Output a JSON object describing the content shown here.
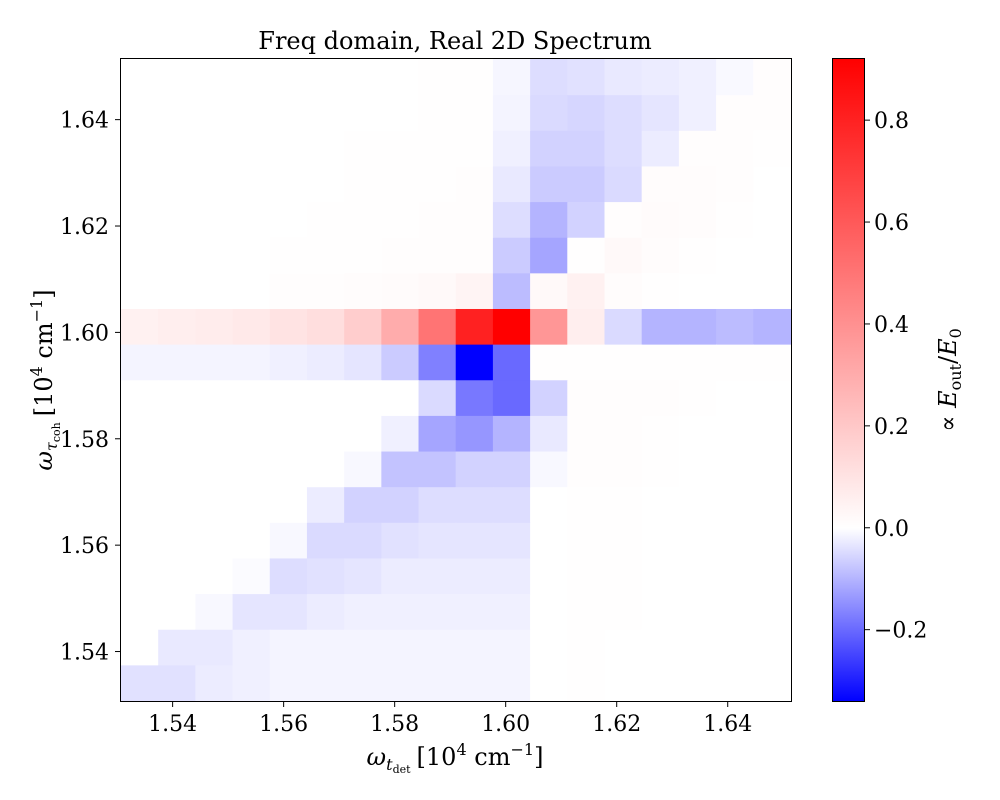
{
  "chart_data": {
    "type": "heatmap",
    "title": "Freq domain, Real 2D Spectrum",
    "xlabel": "ω_{t_det} [10^4 cm^-1]",
    "xlabel_main": "ω",
    "xlabel_sub": "t",
    "xlabel_subsub": "det",
    "xlabel_unit": "[10",
    "xlabel_exp": "4",
    "xlabel_unit2": " cm",
    "xlabel_exp2": "−1",
    "xlabel_close": "]",
    "ylabel": "ω_{τ_coh} [10^4 cm^-1]",
    "ylabel_main": "ω",
    "ylabel_sub": "τ",
    "ylabel_subsub": "coh",
    "ylabel_unit": "[10",
    "ylabel_exp": "4",
    "ylabel_unit2": " cm",
    "ylabel_exp2": "−1",
    "ylabel_close": "]",
    "xlim": [
      1.5307,
      1.6514
    ],
    "ylim": [
      1.5307,
      1.6514
    ],
    "x_ticks": [
      1.54,
      1.56,
      1.58,
      1.6,
      1.62,
      1.64
    ],
    "y_ticks": [
      1.54,
      1.56,
      1.58,
      1.6,
      1.62,
      1.64
    ],
    "x_tick_labels": [
      "1.54",
      "1.56",
      "1.58",
      "1.60",
      "1.62",
      "1.64"
    ],
    "y_tick_labels": [
      "1.54",
      "1.56",
      "1.58",
      "1.60",
      "1.62",
      "1.64"
    ],
    "x_bin_edges": [
      1.5307,
      1.5374,
      1.5441,
      1.5508,
      1.5575,
      1.5642,
      1.5709,
      1.5776,
      1.5843,
      1.591,
      1.5977,
      1.6044,
      1.6111,
      1.6178,
      1.6245,
      1.6312,
      1.6379,
      1.6446,
      1.6514
    ],
    "y_bin_edges": [
      1.5307,
      1.5374,
      1.5441,
      1.5508,
      1.5575,
      1.5642,
      1.5709,
      1.5776,
      1.5843,
      1.591,
      1.5977,
      1.6044,
      1.6111,
      1.6178,
      1.6245,
      1.6312,
      1.6379,
      1.6446,
      1.6514
    ],
    "z_rows_top_to_bottom": [
      [
        0,
        0,
        0,
        0,
        0,
        0,
        0,
        0,
        0.004,
        0.004,
        -0.012,
        -0.045,
        -0.04,
        -0.03,
        -0.025,
        -0.02,
        -0.008,
        0.006
      ],
      [
        0,
        0,
        0,
        0,
        0,
        0,
        0,
        0,
        0.004,
        0.004,
        -0.015,
        -0.05,
        -0.055,
        -0.045,
        -0.035,
        -0.02,
        0.006,
        0.006
      ],
      [
        0,
        0,
        0,
        0,
        0,
        0,
        0.003,
        0.004,
        0.005,
        0.005,
        -0.02,
        -0.06,
        -0.06,
        -0.045,
        -0.025,
        0.008,
        0.006,
        0.005
      ],
      [
        0,
        0,
        0,
        0,
        0,
        0,
        0.003,
        0.004,
        0.005,
        0.006,
        -0.03,
        -0.07,
        -0.07,
        -0.05,
        0.012,
        0.01,
        0.006,
        0
      ],
      [
        0,
        0,
        0,
        0,
        0,
        0.002,
        0.004,
        0.005,
        0.006,
        0.006,
        -0.045,
        -0.1,
        -0.06,
        0.008,
        0.015,
        0.01,
        0.005,
        0
      ],
      [
        0,
        0,
        0,
        0,
        0.002,
        0.004,
        0.005,
        0.007,
        0.008,
        0.009,
        -0.07,
        -0.12,
        0.005,
        0.02,
        0.01,
        0.005,
        0,
        0
      ],
      [
        0,
        0,
        0,
        0,
        0.006,
        0.008,
        0.01,
        0.014,
        0.02,
        0.04,
        -0.09,
        0.02,
        0.05,
        0.012,
        0.005,
        0,
        0,
        0
      ],
      [
        0.05,
        0.06,
        0.07,
        0.08,
        0.1,
        0.12,
        0.18,
        0.3,
        0.5,
        0.8,
        0.92,
        0.38,
        0.06,
        -0.05,
        -0.1,
        -0.1,
        -0.09,
        -0.1
      ],
      [
        -0.015,
        -0.015,
        -0.015,
        -0.015,
        -0.02,
        -0.025,
        -0.035,
        -0.07,
        -0.17,
        -0.34,
        -0.2,
        0.002,
        0.005,
        0.005,
        0.004,
        0.004,
        0.004,
        0.004
      ],
      [
        0,
        0,
        0,
        0,
        0,
        0,
        0,
        0,
        -0.05,
        -0.18,
        -0.2,
        -0.06,
        0.008,
        0.008,
        0.006,
        0.004,
        0,
        0
      ],
      [
        0,
        0,
        0,
        0,
        0,
        0,
        0,
        -0.02,
        -0.12,
        -0.14,
        -0.1,
        -0.03,
        0.007,
        0.006,
        0.004,
        0,
        0,
        0
      ],
      [
        0,
        0,
        0,
        0,
        0,
        0,
        -0.01,
        -0.08,
        -0.08,
        -0.06,
        -0.06,
        -0.01,
        0.008,
        0.006,
        0.004,
        0,
        0,
        0
      ],
      [
        0,
        0,
        0,
        0,
        0,
        -0.025,
        -0.06,
        -0.06,
        -0.045,
        -0.045,
        -0.045,
        0,
        0.005,
        0.005,
        0,
        0,
        0,
        0
      ],
      [
        0,
        0,
        0,
        0,
        -0.01,
        -0.05,
        -0.05,
        -0.04,
        -0.035,
        -0.035,
        -0.035,
        0,
        0.005,
        0.005,
        0,
        0,
        0,
        0
      ],
      [
        0,
        0,
        0,
        -0.005,
        -0.045,
        -0.04,
        -0.035,
        -0.025,
        -0.025,
        -0.025,
        -0.025,
        0,
        0.004,
        0.004,
        0,
        0,
        0,
        0
      ],
      [
        0,
        0,
        -0.01,
        -0.035,
        -0.035,
        -0.025,
        -0.02,
        -0.02,
        -0.02,
        -0.02,
        -0.02,
        0,
        0.004,
        0.004,
        0,
        0,
        0,
        0
      ],
      [
        0,
        -0.03,
        -0.03,
        -0.02,
        -0.015,
        -0.015,
        -0.015,
        -0.015,
        -0.015,
        -0.015,
        -0.015,
        0,
        0.003,
        0,
        0,
        0,
        0,
        0
      ],
      [
        -0.04,
        -0.04,
        -0.025,
        -0.02,
        -0.015,
        -0.015,
        -0.015,
        -0.015,
        -0.015,
        -0.015,
        -0.015,
        0,
        0.003,
        0,
        0,
        0,
        0,
        0
      ]
    ],
    "colormap": "bwr (two-slope, centered at 0)",
    "color_min": "#0000ff",
    "color_mid": "#ffffff",
    "color_max": "#ff0000",
    "vmin": -0.34,
    "vmax": 0.92,
    "colorbar_ticks": [
      -0.2,
      0.0,
      0.2,
      0.4,
      0.6,
      0.8
    ],
    "colorbar_tick_labels": [
      "−0.2",
      "0.0",
      "0.2",
      "0.4",
      "0.6",
      "0.8"
    ],
    "colorbar_label": "∝ E_out/E_0",
    "colorbar_label_prefix": "∝ ",
    "colorbar_label_E": "E",
    "colorbar_label_sub1": "out",
    "colorbar_label_slash": "/",
    "colorbar_label_E2": "E",
    "colorbar_label_sub2": "0",
    "grid": false
  }
}
